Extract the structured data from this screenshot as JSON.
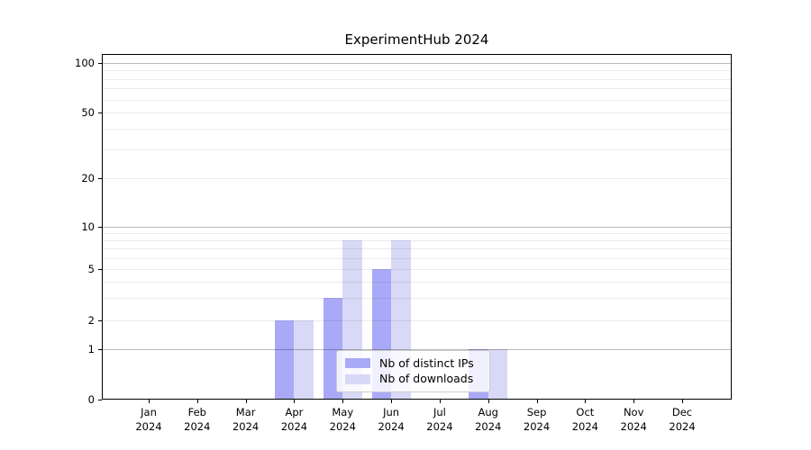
{
  "title": "ExperimentHub 2024",
  "chart_data": {
    "type": "bar",
    "title": "ExperimentHub 2024",
    "x": {
      "months": [
        "Jan",
        "Feb",
        "Mar",
        "Apr",
        "May",
        "Jun",
        "Jul",
        "Aug",
        "Sep",
        "Oct",
        "Nov",
        "Dec"
      ],
      "year": "2024"
    },
    "series": [
      {
        "name": "Nb of distinct IPs",
        "color": "#a9a9f7",
        "values": [
          0,
          0,
          0,
          2,
          3,
          5,
          0,
          1,
          0,
          0,
          0,
          0
        ]
      },
      {
        "name": "Nb of downloads",
        "color": "#d8d8f7",
        "values": [
          0,
          0,
          0,
          2,
          8,
          8,
          0,
          1,
          0,
          0,
          0,
          0
        ]
      }
    ],
    "yscale": "log-with-zero-baseline",
    "ylim": [
      0,
      100
    ],
    "y_ticks": [
      0,
      1,
      2,
      5,
      10,
      20,
      50,
      100
    ],
    "y_decade_ticks": [
      1,
      10,
      100
    ],
    "y_minor_gridlines": [
      3,
      4,
      6,
      7,
      8,
      9,
      30,
      40,
      60,
      70,
      80,
      90
    ],
    "grid": true,
    "legend_position": "lower center"
  },
  "colors": {
    "bar_distinct_ips": "#a9a9f7",
    "bar_downloads": "#d8d8f7",
    "grid_decade": "rgba(0,0,0,0.27)",
    "grid_minor": "rgba(0,0,0,0.08)",
    "axis": "#000000",
    "background": "#ffffff"
  }
}
